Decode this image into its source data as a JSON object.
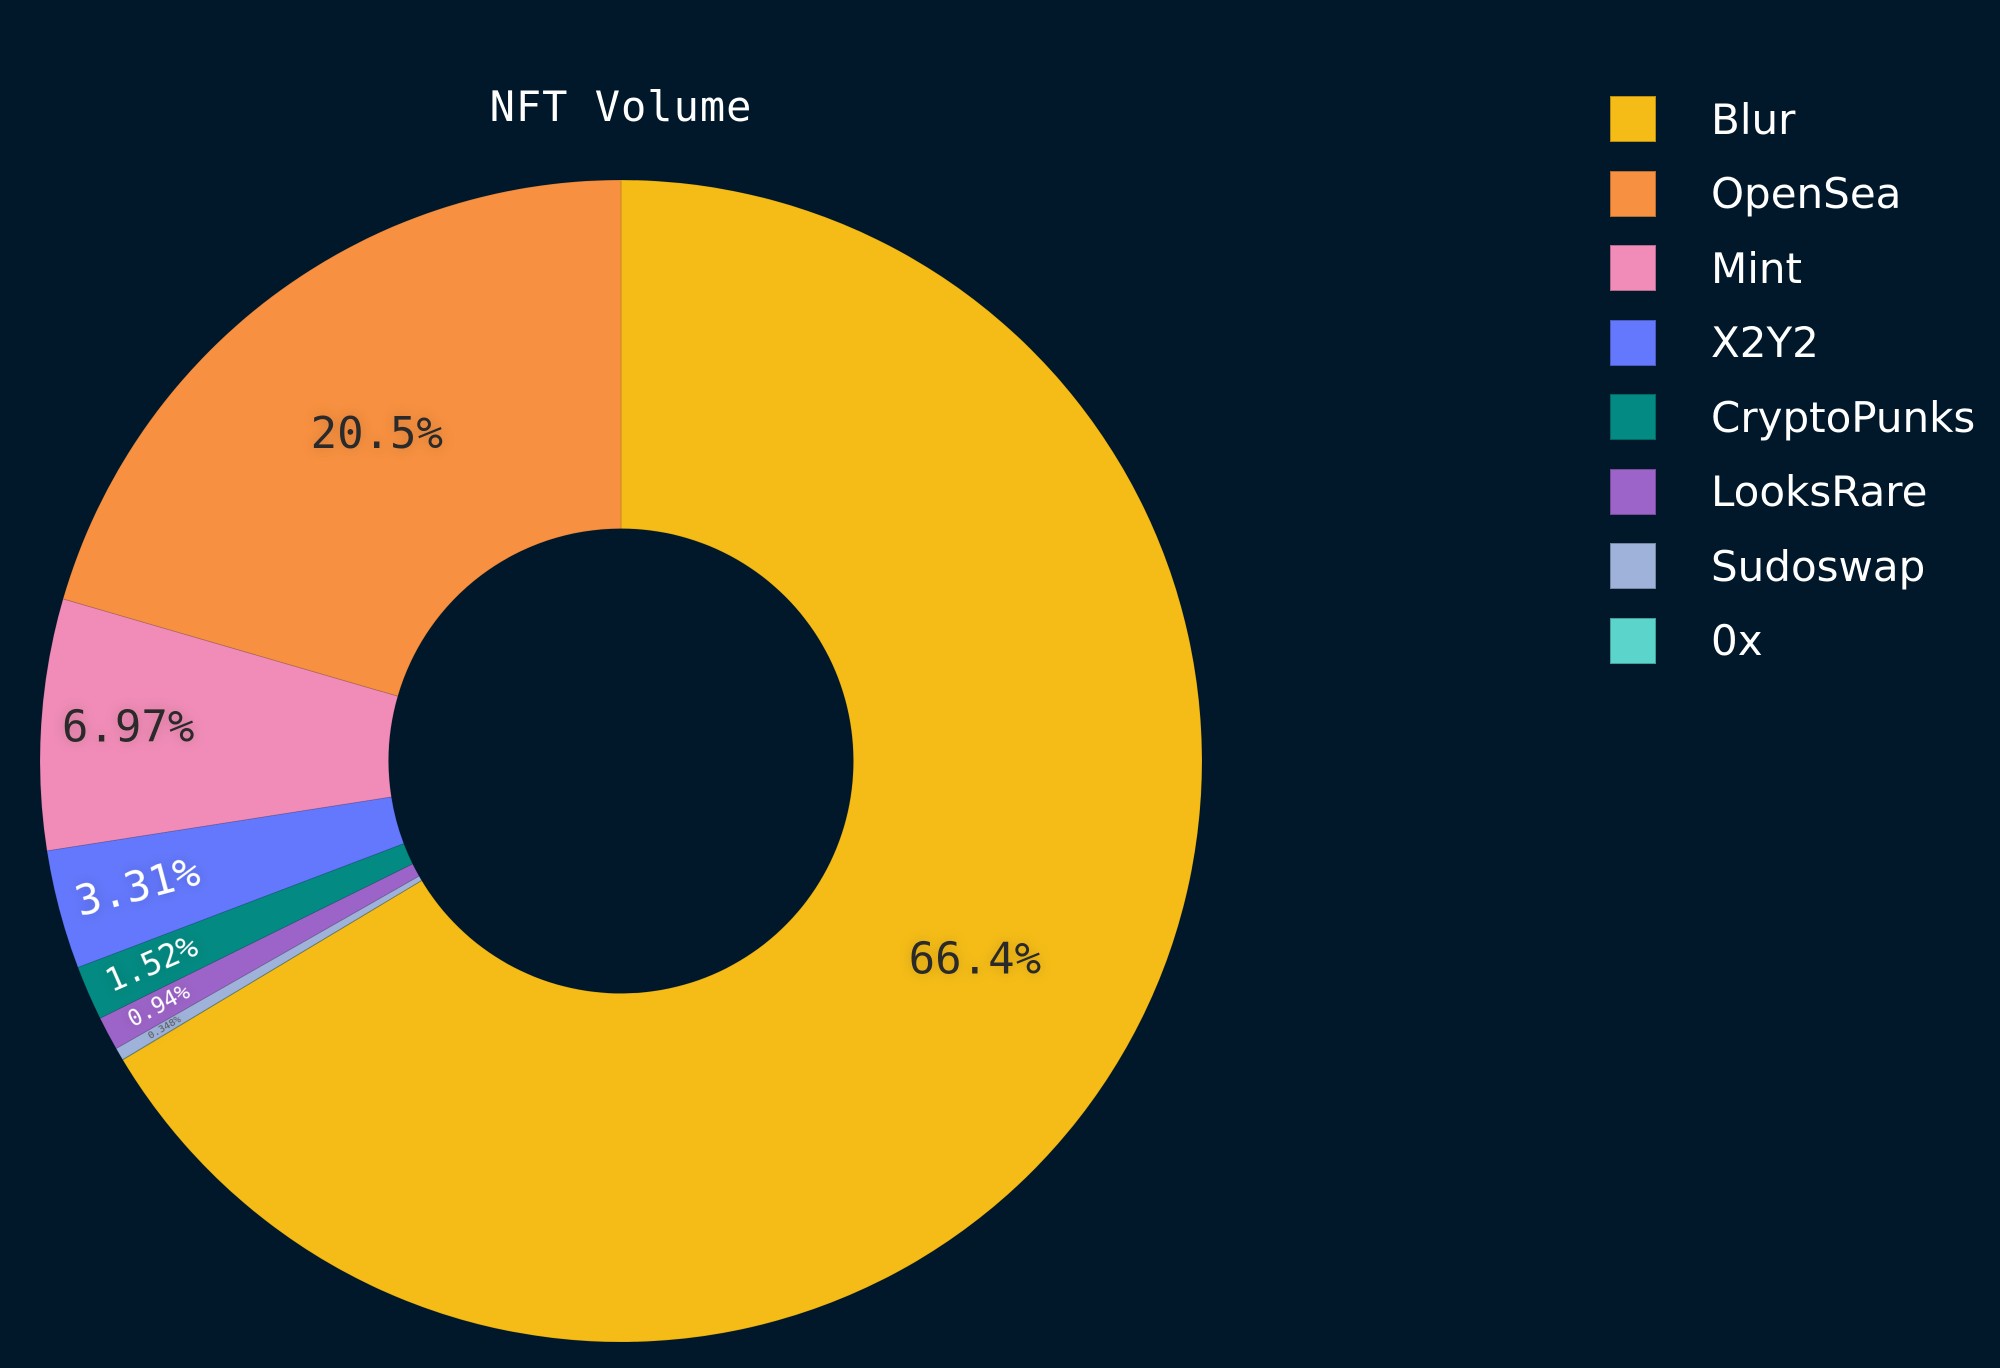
{
  "chart_data": {
    "type": "pie",
    "variant": "donut",
    "title": "NFT Volume",
    "categories": [
      "Blur",
      "OpenSea",
      "Mint",
      "X2Y2",
      "CryptoPunks",
      "LooksRare",
      "Sudoswap",
      "0x"
    ],
    "values": [
      66.4,
      20.5,
      6.97,
      3.31,
      1.52,
      0.94,
      0.348,
      0.012
    ],
    "value_labels": [
      "66.4%",
      "20.5%",
      "6.97%",
      "3.31%",
      "1.52%",
      "0.94%",
      "0.348%",
      ""
    ],
    "colors": [
      "#f5bc17",
      "#f79040",
      "#f08cb7",
      "#6378fc",
      "#038a82",
      "#9c64c8",
      "#9fb2d9",
      "#5bd5cb"
    ],
    "unit": "%",
    "legend_position": "right",
    "inner_radius_ratio": 0.4
  },
  "title": "NFT Volume",
  "legend": {
    "items": [
      {
        "label": "Blur",
        "color": "#f5bc17"
      },
      {
        "label": "OpenSea",
        "color": "#f79040"
      },
      {
        "label": "Mint",
        "color": "#f08cb7"
      },
      {
        "label": "X2Y2",
        "color": "#6378fc"
      },
      {
        "label": "CryptoPunks",
        "color": "#038a82"
      },
      {
        "label": "LooksRare",
        "color": "#9c64c8"
      },
      {
        "label": "Sudoswap",
        "color": "#9fb2d9"
      },
      {
        "label": "0x",
        "color": "#5bd5cb"
      }
    ]
  },
  "theme": {
    "background": "#01182b",
    "text": "#ffffff",
    "label_dark": "#2a2a2a"
  }
}
